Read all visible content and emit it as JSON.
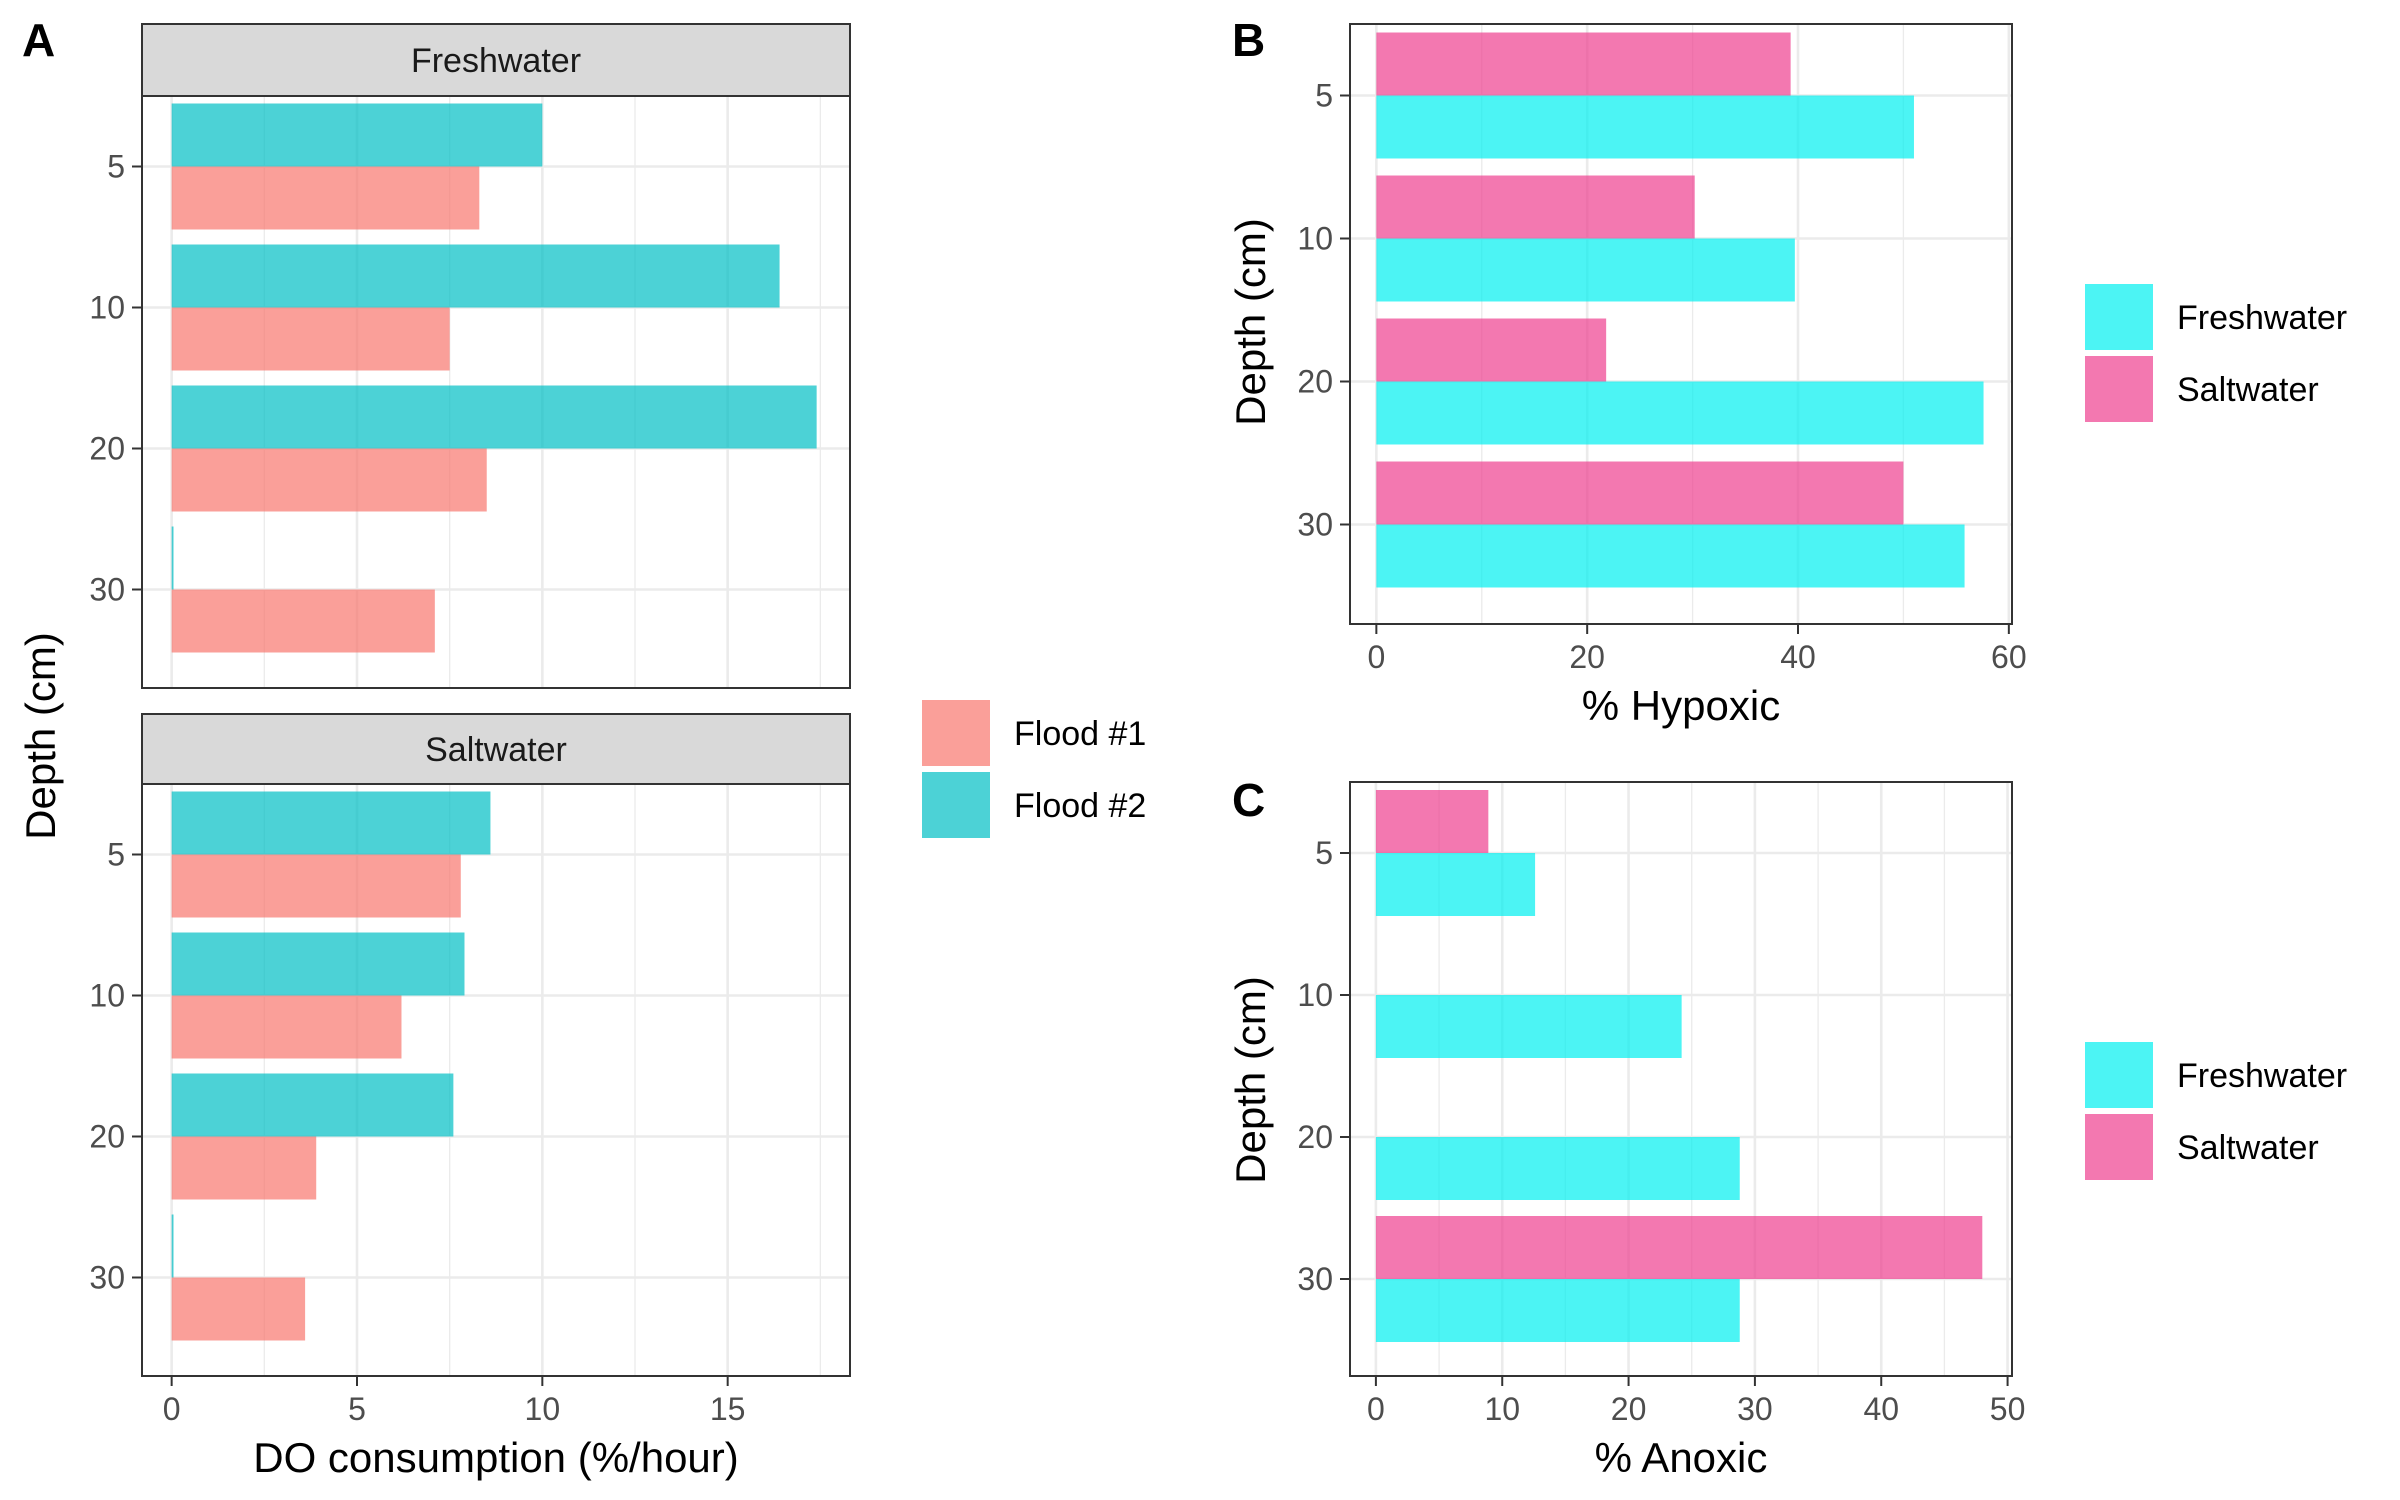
{
  "panel_labels": {
    "a": "A",
    "b": "B",
    "c": "C"
  },
  "colors": {
    "flood1": "#F8766D",
    "flood2": "#00BFC4",
    "freshwater": "#00F0F0",
    "saltwater": "#EE3F8F",
    "strip_bg": "#D9D9D9",
    "grid": "#EBEBEB",
    "axis_text": "#4D4D4D"
  },
  "legend_a": {
    "items": [
      "Flood #1",
      "Flood #2"
    ]
  },
  "legend_b": {
    "items": [
      "Freshwater",
      "Saltwater"
    ]
  },
  "legend_c": {
    "items": [
      "Freshwater",
      "Saltwater"
    ]
  },
  "chart_data": [
    {
      "id": "A",
      "type": "bar",
      "orientation": "horizontal",
      "facets": [
        "Freshwater",
        "Saltwater"
      ],
      "categories": [
        "5",
        "10",
        "20",
        "30"
      ],
      "xlabel": "DO consumption (%/hour)",
      "ylabel": "Depth (cm)",
      "xlim": [
        -0.8,
        18.3
      ],
      "xticks": [
        0,
        5,
        10,
        15
      ],
      "grid": true,
      "legend_position": "right",
      "series": [
        {
          "name": "Flood #1",
          "facet": "Freshwater",
          "values": [
            8.3,
            7.5,
            8.5,
            7.1
          ]
        },
        {
          "name": "Flood #2",
          "facet": "Freshwater",
          "values": [
            10.0,
            16.4,
            17.4,
            0.05
          ]
        },
        {
          "name": "Flood #1",
          "facet": "Saltwater",
          "values": [
            7.8,
            6.2,
            3.9,
            3.6
          ]
        },
        {
          "name": "Flood #2",
          "facet": "Saltwater",
          "values": [
            8.6,
            7.9,
            7.6,
            0.05
          ]
        }
      ]
    },
    {
      "id": "B",
      "type": "bar",
      "orientation": "horizontal",
      "categories": [
        "5",
        "10",
        "20",
        "30"
      ],
      "xlabel": "% Hypoxic",
      "ylabel": "Depth (cm)",
      "xlim": [
        -2.5,
        60.3
      ],
      "xticks": [
        0,
        20,
        40,
        60
      ],
      "grid": true,
      "legend_position": "right",
      "series": [
        {
          "name": "Freshwater",
          "values": [
            51,
            39.7,
            57.6,
            55.8
          ]
        },
        {
          "name": "Saltwater",
          "values": [
            39.3,
            30.2,
            21.8,
            50
          ]
        }
      ]
    },
    {
      "id": "C",
      "type": "bar",
      "orientation": "horizontal",
      "categories": [
        "5",
        "10",
        "20",
        "30"
      ],
      "xlabel": "% Anoxic",
      "ylabel": "Depth (cm)",
      "xlim": [
        -2.05,
        50.35
      ],
      "xticks": [
        0,
        10,
        20,
        30,
        40,
        50
      ],
      "grid": true,
      "legend_position": "right",
      "series": [
        {
          "name": "Freshwater",
          "values": [
            12.6,
            24.2,
            28.8,
            28.8
          ]
        },
        {
          "name": "Saltwater",
          "values": [
            8.9,
            0,
            0,
            48
          ]
        }
      ]
    }
  ]
}
